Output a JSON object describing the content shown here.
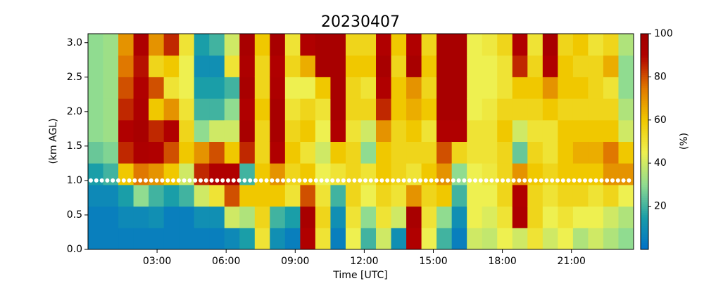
{
  "chart_data": {
    "type": "heatmap",
    "title": "20230407",
    "xlabel": "Time [UTC]",
    "ylabel": "(km AGL)",
    "colorbar_label": "(%)",
    "xlim": [
      0,
      23.7
    ],
    "ylim": [
      0,
      3.13
    ],
    "xticks": [
      {
        "value": 3,
        "label": "03:00"
      },
      {
        "value": 6,
        "label": "06:00"
      },
      {
        "value": 9,
        "label": "09:00"
      },
      {
        "value": 12,
        "label": "12:00"
      },
      {
        "value": 15,
        "label": "15:00"
      },
      {
        "value": 18,
        "label": "18:00"
      },
      {
        "value": 21,
        "label": "21:00"
      }
    ],
    "yticks": [
      {
        "value": 0,
        "label": "0.0"
      },
      {
        "value": 0.5,
        "label": "0.5"
      },
      {
        "value": 1,
        "label": "1.0"
      },
      {
        "value": 1.5,
        "label": "1.5"
      },
      {
        "value": 2,
        "label": "2.0"
      },
      {
        "value": 2.5,
        "label": "2.5"
      },
      {
        "value": 3,
        "label": "3.0"
      }
    ],
    "clim": [
      0,
      100
    ],
    "cticks": [
      20,
      40,
      60,
      80,
      100
    ],
    "colormap": [
      [
        0,
        "#0070c8"
      ],
      [
        15,
        "#1a9ea8"
      ],
      [
        30,
        "#90dc90"
      ],
      [
        45,
        "#eef050"
      ],
      [
        60,
        "#f0c800"
      ],
      [
        75,
        "#e07800"
      ],
      [
        90,
        "#b00000"
      ],
      [
        100,
        "#a00000"
      ]
    ],
    "hline": 1,
    "hline_color": "#ffffff",
    "values": [
      [
        5,
        5,
        8,
        15,
        25,
        30,
        30,
        30,
        30,
        30
      ],
      [
        5,
        5,
        8,
        20,
        28,
        32,
        32,
        32,
        32,
        32
      ],
      [
        5,
        8,
        15,
        60,
        85,
        90,
        85,
        80,
        75,
        70
      ],
      [
        5,
        8,
        30,
        75,
        92,
        95,
        92,
        90,
        88,
        92
      ],
      [
        5,
        10,
        20,
        70,
        90,
        85,
        60,
        80,
        55,
        70
      ],
      [
        5,
        5,
        15,
        60,
        80,
        90,
        70,
        50,
        60,
        85
      ],
      [
        5,
        5,
        20,
        40,
        60,
        55,
        50,
        45,
        45,
        50
      ],
      [
        5,
        10,
        40,
        85,
        70,
        30,
        20,
        15,
        10,
        15
      ],
      [
        5,
        10,
        50,
        90,
        80,
        40,
        20,
        15,
        10,
        20
      ],
      [
        8,
        40,
        80,
        90,
        60,
        40,
        30,
        20,
        50,
        40
      ],
      [
        15,
        35,
        60,
        20,
        85,
        95,
        90,
        95,
        92,
        95
      ],
      [
        50,
        55,
        60,
        60,
        55,
        55,
        60,
        55,
        55,
        60
      ],
      [
        10,
        20,
        60,
        70,
        90,
        95,
        95,
        92,
        90,
        95
      ],
      [
        5,
        15,
        50,
        55,
        60,
        55,
        50,
        45,
        55,
        50
      ],
      [
        90,
        95,
        80,
        60,
        50,
        60,
        55,
        45,
        65,
        90
      ],
      [
        50,
        55,
        50,
        45,
        40,
        45,
        50,
        60,
        95,
        95
      ],
      [
        5,
        10,
        20,
        50,
        60,
        90,
        95,
        95,
        95,
        95
      ],
      [
        45,
        50,
        55,
        55,
        55,
        50,
        55,
        55,
        60,
        55
      ],
      [
        20,
        30,
        45,
        50,
        30,
        40,
        55,
        50,
        60,
        55
      ],
      [
        40,
        50,
        55,
        60,
        60,
        70,
        85,
        90,
        95,
        90
      ],
      [
        10,
        40,
        50,
        55,
        55,
        55,
        60,
        60,
        55,
        60
      ],
      [
        90,
        95,
        70,
        50,
        55,
        60,
        65,
        70,
        95,
        90
      ],
      [
        45,
        50,
        55,
        60,
        55,
        50,
        60,
        55,
        60,
        55
      ],
      [
        20,
        30,
        60,
        70,
        80,
        90,
        95,
        95,
        95,
        95
      ],
      [
        5,
        10,
        20,
        30,
        55,
        90,
        95,
        95,
        95,
        95
      ],
      [
        40,
        45,
        45,
        45,
        50,
        50,
        45,
        45,
        45,
        45
      ],
      [
        38,
        42,
        45,
        48,
        50,
        50,
        48,
        45,
        45,
        48
      ],
      [
        45,
        50,
        55,
        55,
        55,
        60,
        55,
        50,
        50,
        55
      ],
      [
        40,
        92,
        90,
        70,
        25,
        40,
        55,
        60,
        85,
        90
      ],
      [
        50,
        55,
        55,
        60,
        55,
        50,
        55,
        60,
        55,
        50
      ],
      [
        40,
        45,
        50,
        55,
        50,
        50,
        60,
        70,
        90,
        95
      ],
      [
        45,
        50,
        55,
        60,
        60,
        60,
        55,
        60,
        60,
        55
      ],
      [
        35,
        45,
        55,
        60,
        65,
        60,
        55,
        60,
        55,
        60
      ],
      [
        40,
        45,
        50,
        60,
        65,
        60,
        55,
        55,
        55,
        50
      ],
      [
        35,
        40,
        55,
        70,
        75,
        60,
        55,
        50,
        65,
        55
      ],
      [
        30,
        35,
        45,
        70,
        60,
        40,
        35,
        30,
        30,
        35
      ]
    ]
  }
}
